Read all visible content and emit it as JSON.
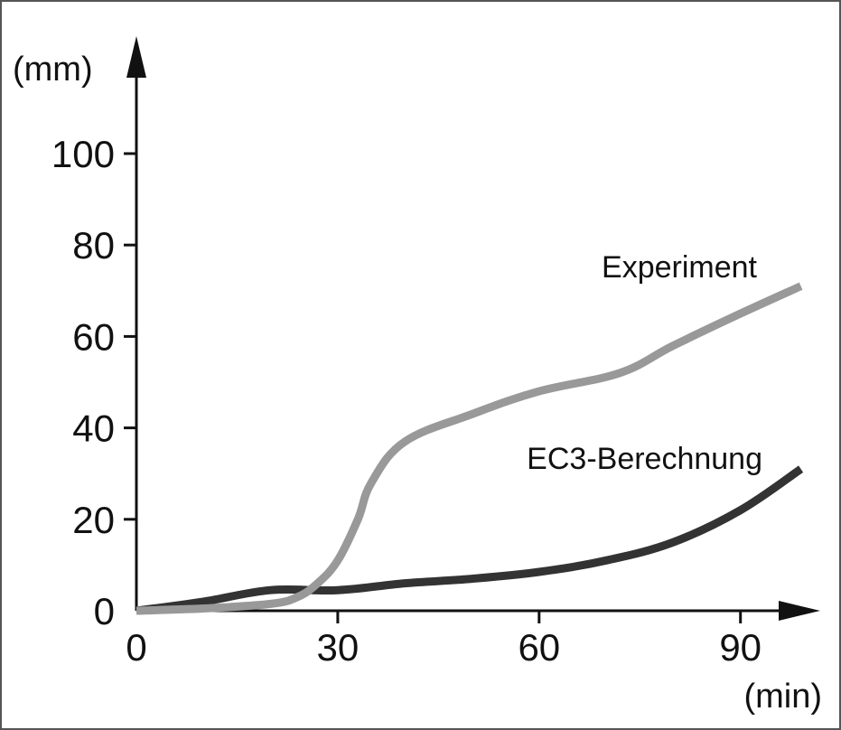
{
  "chart_data": {
    "type": "line",
    "title": "",
    "xlabel": "(min)",
    "ylabel": "(mm)",
    "xlim": [
      0,
      102
    ],
    "ylim": [
      0,
      115
    ],
    "xticks": [
      0,
      30,
      60,
      90
    ],
    "yticks": [
      0,
      20,
      40,
      60,
      80,
      100
    ],
    "grid": false,
    "series": [
      {
        "name": "Experiment",
        "color": "#999999",
        "x": [
          0,
          10,
          20,
          24,
          27,
          30,
          33,
          35,
          40,
          50,
          60,
          72,
          80,
          90,
          99
        ],
        "y": [
          0,
          0.5,
          1.5,
          3,
          6,
          11,
          20,
          28,
          37,
          43,
          48,
          52,
          58,
          65,
          71
        ]
      },
      {
        "name": "EC3-Berechnung",
        "color": "#333333",
        "x": [
          0,
          10,
          20,
          30,
          40,
          50,
          60,
          70,
          80,
          90,
          99
        ],
        "y": [
          0,
          2,
          4.5,
          4.5,
          6,
          7,
          8.5,
          11,
          15,
          22,
          31
        ]
      }
    ]
  }
}
